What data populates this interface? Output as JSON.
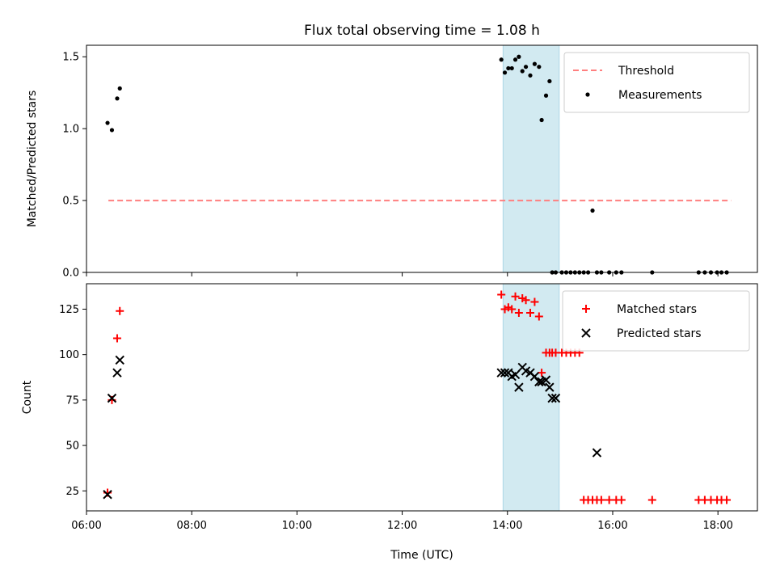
{
  "chart_data": [
    {
      "type": "scatter",
      "title": "Flux total observing time = 1.08 h",
      "xlabel": "",
      "ylabel": "Matched/Predicted stars",
      "xlim": [
        "06:00",
        "18:45"
      ],
      "ylim": [
        0,
        1.58
      ],
      "yticks": [
        "0.0",
        "0.5",
        "1.0",
        "1.5"
      ],
      "highlight_span": {
        "x0": "13:55",
        "x1": "14:59",
        "color": "#add8e6"
      },
      "legend_position": "upper-right",
      "series": [
        {
          "name": "Threshold",
          "kind": "line",
          "style": "dashed",
          "color": "#ff7f7f",
          "x": [
            "06:25",
            "18:15"
          ],
          "y": [
            0.5,
            0.5
          ]
        },
        {
          "name": "Measurements",
          "kind": "scatter",
          "marker": "dot",
          "color": "#000000",
          "x": [
            "06:24",
            "06:29",
            "06:35",
            "06:38",
            "13:53",
            "13:57",
            "14:01",
            "14:05",
            "14:09",
            "14:13",
            "14:17",
            "14:21",
            "14:26",
            "14:31",
            "14:36",
            "14:39",
            "14:44",
            "14:48",
            "14:51",
            "14:55",
            "15:02",
            "15:07",
            "15:12",
            "15:17",
            "15:22",
            "15:27",
            "15:32",
            "15:37",
            "15:42",
            "15:47",
            "15:56",
            "16:04",
            "16:10",
            "16:45",
            "17:38",
            "17:45",
            "17:52",
            "17:59",
            "18:04",
            "18:10"
          ],
          "y": [
            1.04,
            0.99,
            1.21,
            1.28,
            1.48,
            1.39,
            1.42,
            1.42,
            1.48,
            1.5,
            1.4,
            1.43,
            1.37,
            1.45,
            1.43,
            1.06,
            1.23,
            1.33,
            0.0,
            0.0,
            0.0,
            0.0,
            0.0,
            0.0,
            0.0,
            0.0,
            0.0,
            0.43,
            0.0,
            0.0,
            0.0,
            0.0,
            0.0,
            0.0,
            0.0,
            0.0,
            0.0,
            0.0,
            0.0,
            0.0
          ]
        }
      ]
    },
    {
      "type": "scatter",
      "title": "",
      "xlabel": "Time (UTC)",
      "ylabel": "Count",
      "xlim": [
        "06:00",
        "18:45"
      ],
      "ylim": [
        14,
        139
      ],
      "xticks": [
        "06:00",
        "08:00",
        "10:00",
        "12:00",
        "14:00",
        "16:00",
        "18:00"
      ],
      "yticks": [
        "25",
        "50",
        "75",
        "100",
        "125"
      ],
      "highlight_span": {
        "x0": "13:55",
        "x1": "14:59",
        "color": "#add8e6"
      },
      "legend_position": "upper-right",
      "series": [
        {
          "name": "Matched stars",
          "kind": "scatter",
          "marker": "plus",
          "color": "#ff0000",
          "x": [
            "06:24",
            "06:29",
            "06:35",
            "06:38",
            "13:53",
            "13:57",
            "14:01",
            "14:05",
            "14:09",
            "14:13",
            "14:17",
            "14:21",
            "14:26",
            "14:31",
            "14:36",
            "14:39",
            "14:44",
            "14:48",
            "14:51",
            "14:55",
            "15:02",
            "15:07",
            "15:12",
            "15:17",
            "15:22",
            "15:27",
            "15:32",
            "15:37",
            "15:42",
            "15:47",
            "15:56",
            "16:04",
            "16:10",
            "16:45",
            "17:38",
            "17:45",
            "17:52",
            "17:59",
            "18:04",
            "18:10"
          ],
          "y": [
            24,
            75,
            109,
            124,
            133,
            125,
            126,
            125,
            132,
            123,
            131,
            130,
            123,
            129,
            121,
            90,
            101,
            101,
            101,
            101,
            101,
            101,
            101,
            101,
            101,
            20,
            20,
            20,
            20,
            20,
            20,
            20,
            20,
            20,
            20,
            20,
            20,
            20,
            20,
            20
          ]
        },
        {
          "name": "Predicted stars",
          "kind": "scatter",
          "marker": "x",
          "color": "#000000",
          "x": [
            "06:24",
            "06:29",
            "06:35",
            "06:38",
            "13:53",
            "13:57",
            "14:01",
            "14:05",
            "14:09",
            "14:13",
            "14:17",
            "14:21",
            "14:26",
            "14:31",
            "14:36",
            "14:39",
            "14:44",
            "14:48",
            "14:51",
            "14:55",
            "15:42"
          ],
          "y": [
            23,
            76,
            90,
            97,
            90,
            90,
            90,
            88,
            89,
            82,
            93,
            91,
            90,
            88,
            85,
            85,
            86,
            82,
            76,
            76,
            46
          ]
        }
      ]
    }
  ]
}
